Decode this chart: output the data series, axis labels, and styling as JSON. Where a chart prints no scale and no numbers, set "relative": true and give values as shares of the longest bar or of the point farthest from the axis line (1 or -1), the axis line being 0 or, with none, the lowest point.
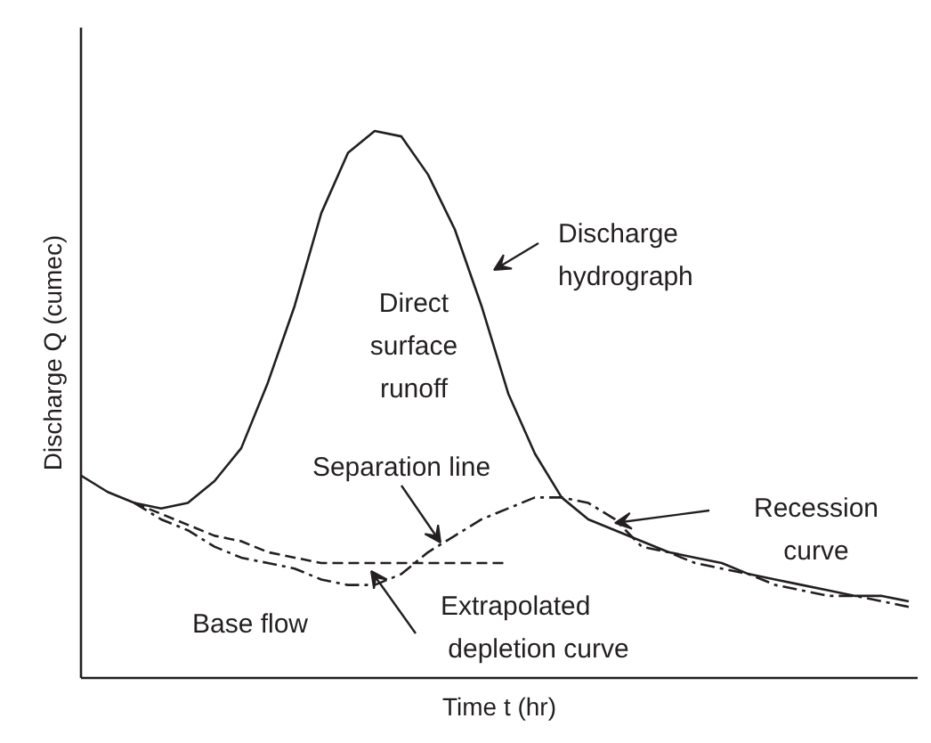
{
  "chart_data": {
    "type": "line",
    "relative": true,
    "xlabel": "Time t (hr)",
    "ylabel": "Discharge Q (cumec)",
    "categories": [
      null,
      null,
      null,
      null,
      null,
      null,
      null,
      null,
      null,
      null,
      null,
      null,
      null,
      null,
      null,
      null,
      null,
      null,
      null,
      null,
      null,
      null,
      null,
      null,
      null,
      null,
      null,
      null,
      null,
      null,
      null,
      null
    ],
    "series": [
      {
        "color": "#231f20",
        "line_style": "solid",
        "values": [
          0.37,
          0.34,
          0.32,
          0.31,
          0.32,
          0.36,
          0.42,
          0.54,
          0.68,
          0.85,
          0.96,
          1.0,
          0.99,
          0.92,
          0.82,
          0.68,
          0.52,
          0.41,
          0.33,
          0.29,
          0.27,
          0.25,
          0.23,
          0.22,
          0.21,
          0.19,
          0.18,
          0.17,
          0.16,
          0.15,
          0.15,
          0.14
        ]
      },
      {
        "color": "#231f20",
        "line_style": "dashdot",
        "values": [
          null,
          null,
          0.32,
          0.29,
          0.27,
          0.24,
          0.22,
          0.21,
          0.2,
          0.18,
          0.17,
          0.17,
          0.19,
          0.23,
          0.26,
          0.29,
          0.31,
          0.33,
          0.33,
          0.32,
          0.29,
          0.24,
          0.23,
          0.21,
          0.2,
          0.19,
          0.17,
          0.16,
          0.15,
          0.15,
          0.14,
          0.13
        ]
      },
      {
        "color": "#231f20",
        "line_style": "dashed",
        "values": [
          null,
          null,
          0.32,
          0.3,
          0.28,
          0.26,
          0.25,
          0.23,
          0.22,
          0.21,
          0.21,
          0.21,
          0.21,
          0.21,
          0.21,
          0.21,
          0.21,
          null,
          null,
          null,
          null,
          null,
          null,
          null,
          null,
          null,
          null,
          null,
          null,
          null,
          null,
          null
        ]
      }
    ],
    "annotations": [
      "Direct surface runoff",
      "Discharge hydrograph",
      "Separation line",
      "Recession curve",
      "Extrapolated depletion curve",
      "Base flow"
    ]
  }
}
